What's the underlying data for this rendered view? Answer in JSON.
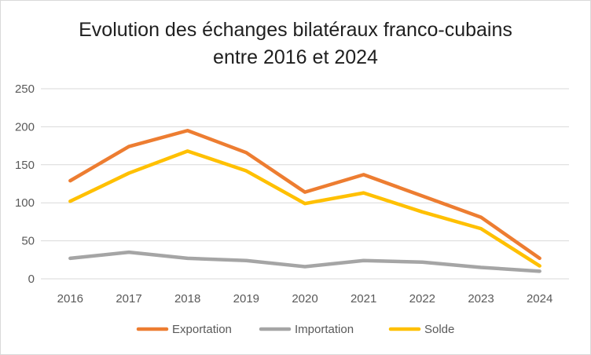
{
  "chart_data": {
    "type": "line",
    "title_line1": "Evolution des échanges bilatéraux franco-cubains",
    "title_line2": "entre 2016 et 2024",
    "categories": [
      "2016",
      "2017",
      "2018",
      "2019",
      "2020",
      "2021",
      "2022",
      "2023",
      "2024"
    ],
    "ylim": [
      0,
      250
    ],
    "yticks": [
      0,
      50,
      100,
      150,
      200,
      250
    ],
    "grid": true,
    "legend_position": "bottom",
    "series": [
      {
        "name": "Exportation",
        "color": "#ED7D31",
        "values": [
          129,
          174,
          195,
          166,
          114,
          137,
          109,
          81,
          27
        ]
      },
      {
        "name": "Importation",
        "color": "#A5A5A5",
        "values": [
          27,
          35,
          27,
          24,
          16,
          24,
          22,
          15,
          10
        ]
      },
      {
        "name": "Solde",
        "color": "#FFC000",
        "values": [
          102,
          139,
          168,
          142,
          99,
          113,
          88,
          66,
          17
        ]
      }
    ]
  }
}
